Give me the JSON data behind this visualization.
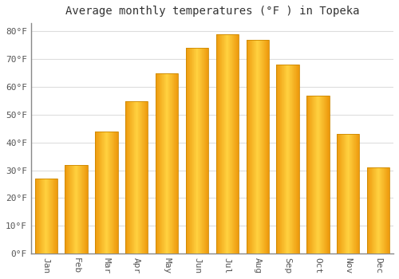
{
  "title": "Average monthly temperatures (°F ) in Topeka",
  "months": [
    "Jan",
    "Feb",
    "Mar",
    "Apr",
    "May",
    "Jun",
    "Jul",
    "Aug",
    "Sep",
    "Oct",
    "Nov",
    "Dec"
  ],
  "values": [
    27,
    32,
    44,
    55,
    65,
    74,
    79,
    77,
    68,
    57,
    43,
    31
  ],
  "bar_color_left": "#F5A623",
  "bar_color_center": "#FFD060",
  "bar_color_right": "#E8960A",
  "bar_edge_color": "#CC8800",
  "background_color": "#FFFFFF",
  "plot_bg_color": "#FFFFFF",
  "grid_color": "#DDDDDD",
  "text_color": "#555555",
  "ylim": [
    0,
    83
  ],
  "yticks": [
    0,
    10,
    20,
    30,
    40,
    50,
    60,
    70,
    80
  ],
  "title_fontsize": 10,
  "tick_fontsize": 8,
  "bar_width": 0.75
}
